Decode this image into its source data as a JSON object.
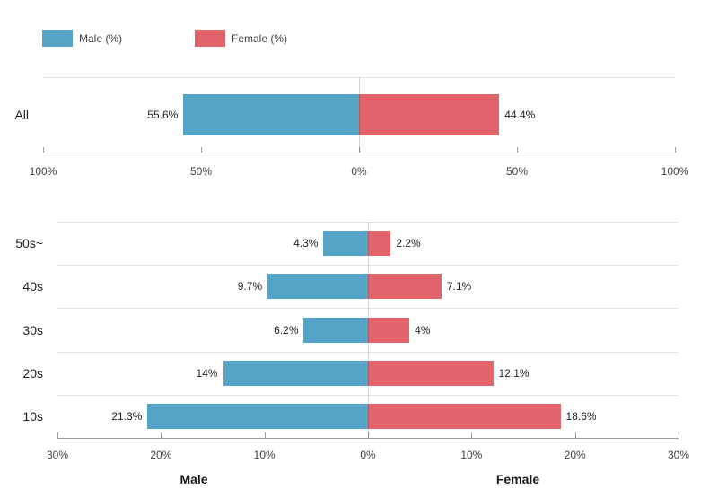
{
  "legend": {
    "items": [
      {
        "label": "Male (%)",
        "color": "#55A3C7",
        "icon": "male-color-swatch"
      },
      {
        "label": "Female (%)",
        "color": "#E2646B",
        "icon": "female-color-swatch"
      }
    ]
  },
  "colors": {
    "male": "#55A3C7",
    "female": "#E2646B",
    "gridline": "#e2e2e2",
    "axis": "#9e9e9e",
    "text": "#212121"
  },
  "chart_data": [
    {
      "type": "bar",
      "subtype": "diverging-horizontal",
      "title": "",
      "categories": [
        "All"
      ],
      "series": [
        {
          "name": "Male (%)",
          "side": "left",
          "color": "#55A3C7",
          "values": [
            55.6
          ],
          "labels": [
            "55.6%"
          ]
        },
        {
          "name": "Female (%)",
          "side": "right",
          "color": "#E2646B",
          "values": [
            44.4
          ],
          "labels": [
            "44.4%"
          ]
        }
      ],
      "axis": {
        "max": 100,
        "tick_labels": [
          "100%",
          "50%",
          "0%",
          "50%",
          "100%"
        ]
      },
      "grid": true,
      "legend_position": "top-left"
    },
    {
      "type": "bar",
      "subtype": "diverging-horizontal",
      "title": "",
      "categories": [
        "50s~",
        "40s",
        "30s",
        "20s",
        "10s"
      ],
      "series": [
        {
          "name": "Male (%)",
          "side": "left",
          "color": "#55A3C7",
          "values": [
            4.3,
            9.7,
            6.2,
            14,
            21.3
          ],
          "labels": [
            "4.3%",
            "9.7%",
            "6.2%",
            "14%",
            "21.3%"
          ]
        },
        {
          "name": "Female (%)",
          "side": "right",
          "color": "#E2646B",
          "values": [
            2.2,
            7.1,
            4,
            12.1,
            18.6
          ],
          "labels": [
            "2.2%",
            "7.1%",
            "4%",
            "12.1%",
            "18.6%"
          ]
        }
      ],
      "axis": {
        "max": 30,
        "tick_labels": [
          "30%",
          "20%",
          "10%",
          "0%",
          "10%",
          "20%",
          "30%"
        ],
        "titles": {
          "left": "Male",
          "right": "Female"
        }
      },
      "grid": true
    }
  ]
}
